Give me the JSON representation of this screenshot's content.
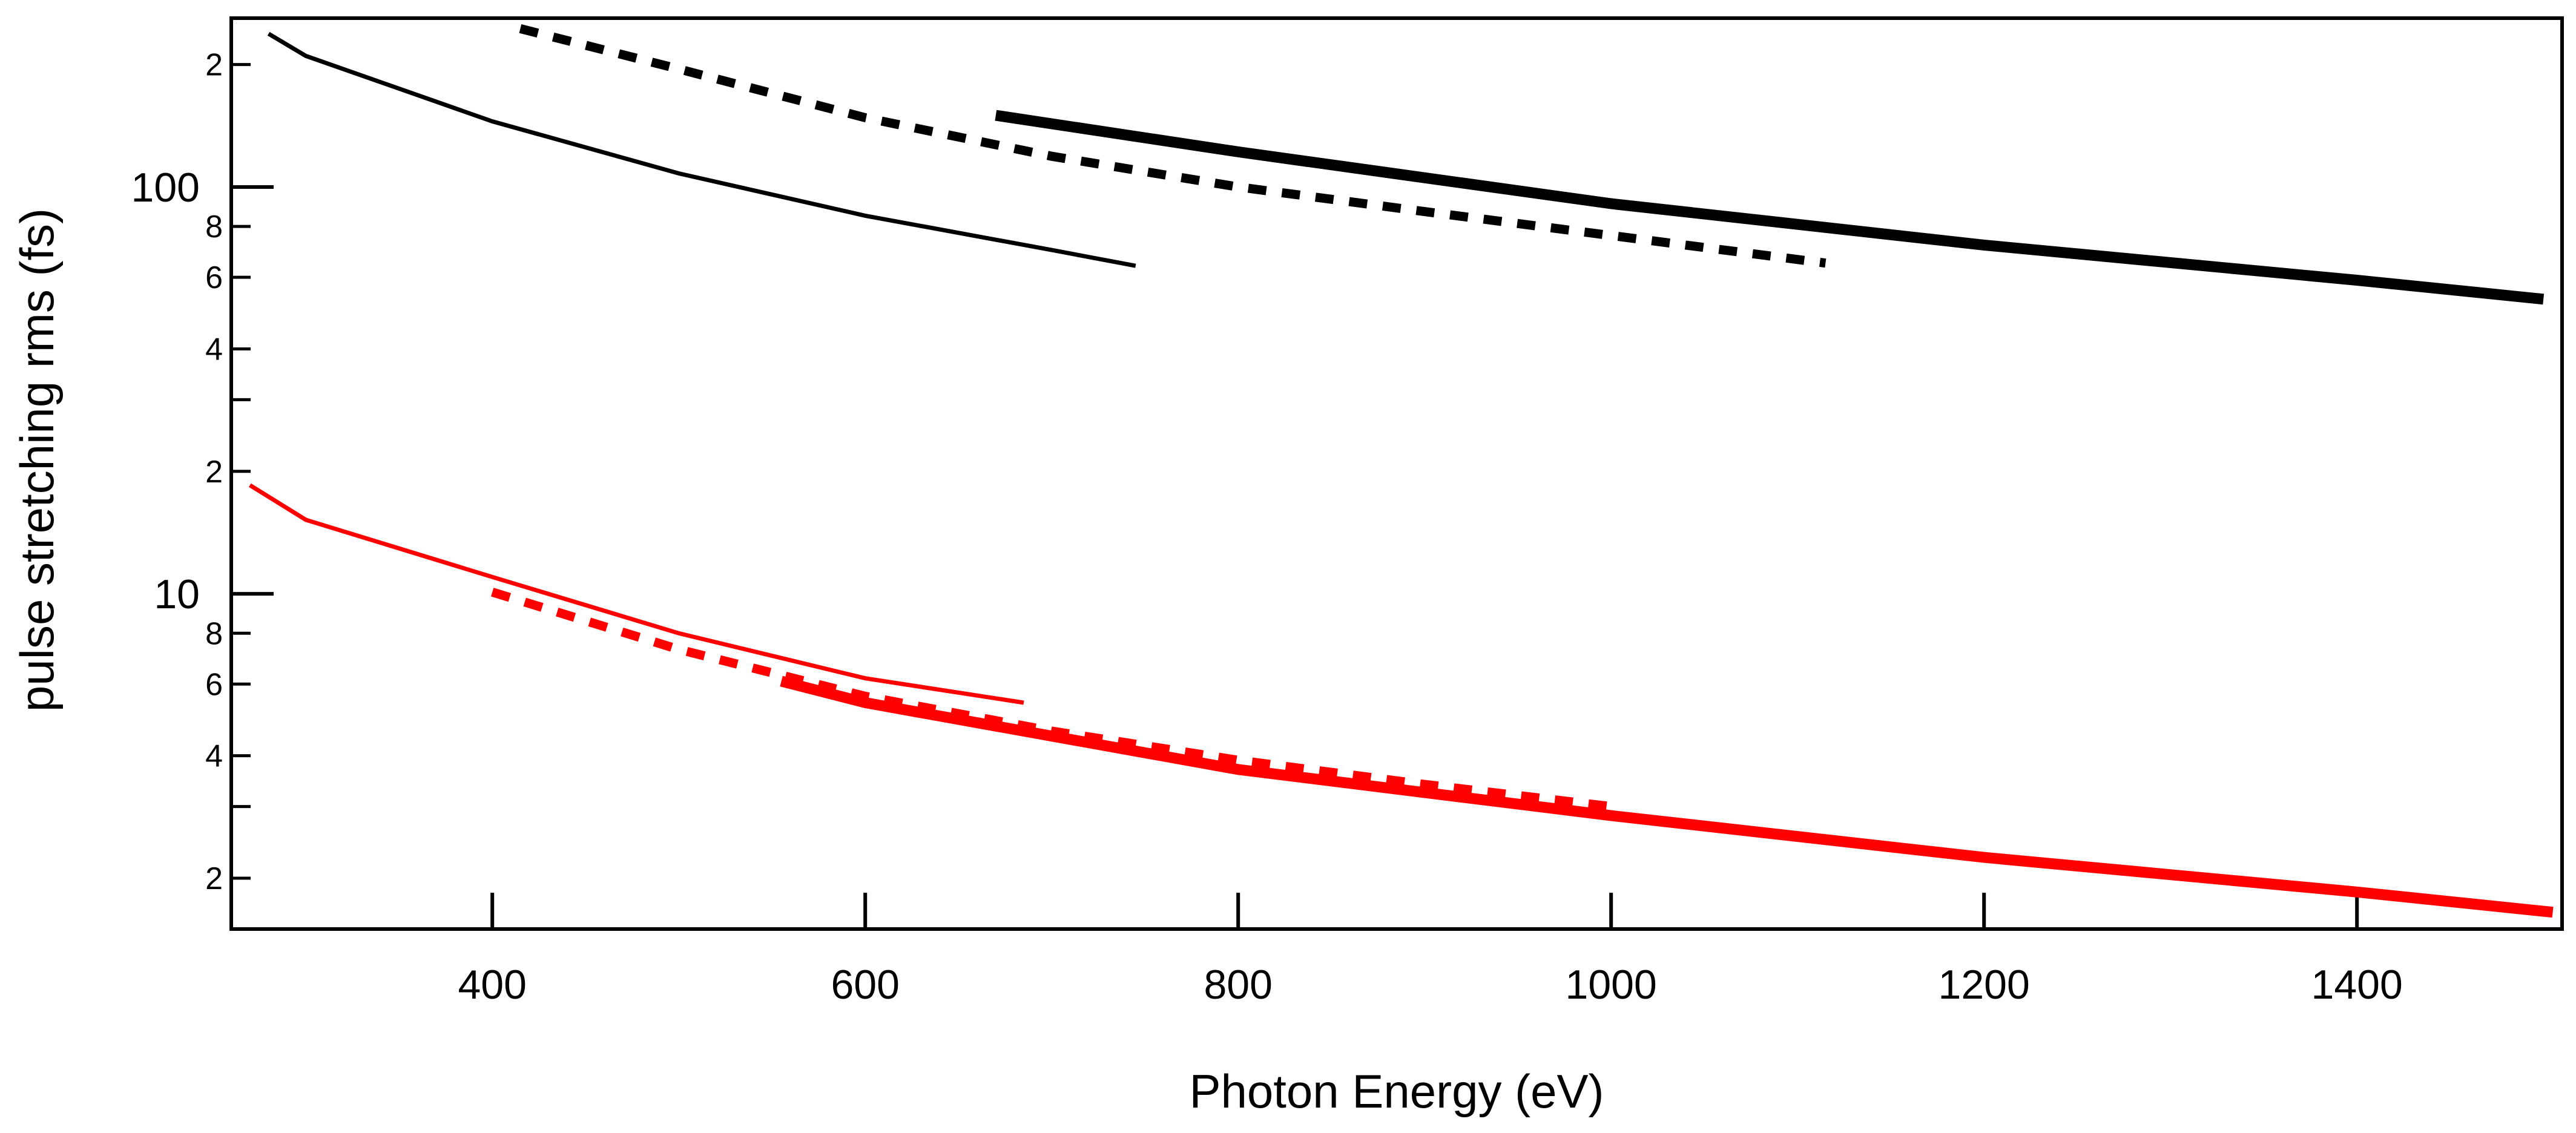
{
  "chart_data": {
    "type": "line",
    "title": "",
    "xlabel": "Photon Energy (eV)",
    "ylabel": "pulse stretching rms (fs)",
    "xlim": [
      260,
      1510
    ],
    "ylim": [
      1.5,
      260
    ],
    "yscale": "log",
    "grid": false,
    "legend": "none",
    "x_ticks": [
      {
        "value": 400,
        "label": "400"
      },
      {
        "value": 600,
        "label": "600"
      },
      {
        "value": 800,
        "label": "800"
      },
      {
        "value": 1000,
        "label": "1000"
      },
      {
        "value": 1200,
        "label": "1200"
      },
      {
        "value": 1400,
        "label": "1400"
      }
    ],
    "y_major_ticks": [
      {
        "value": 10,
        "label": "10"
      },
      {
        "value": 100,
        "label": "100"
      }
    ],
    "y_minor_ticks": [
      {
        "value": 2,
        "label": "2"
      },
      {
        "value": 3,
        "label": ""
      },
      {
        "value": 4,
        "label": "4"
      },
      {
        "value": 6,
        "label": "6"
      },
      {
        "value": 8,
        "label": "8"
      },
      {
        "value": 20,
        "label": "2"
      },
      {
        "value": 30,
        "label": ""
      },
      {
        "value": 40,
        "label": "4"
      },
      {
        "value": 60,
        "label": "6"
      },
      {
        "value": 80,
        "label": "8"
      },
      {
        "value": 200,
        "label": "2"
      }
    ],
    "series": [
      {
        "name": "black-thin",
        "color": "#000000",
        "style": "solid",
        "weight": "thin",
        "x": [
          280,
          300,
          400,
          500,
          600,
          700,
          745
        ],
        "y": [
          238,
          210,
          145,
          108,
          85,
          70,
          64
        ]
      },
      {
        "name": "black-dashed",
        "color": "#000000",
        "style": "dashed",
        "weight": "medium",
        "x": [
          415,
          500,
          600,
          700,
          800,
          900,
          1000,
          1115
        ],
        "y": [
          245,
          195,
          148,
          119,
          100,
          87,
          76,
          65
        ]
      },
      {
        "name": "black-thick",
        "color": "#000000",
        "style": "solid",
        "weight": "thick",
        "x": [
          670,
          800,
          1000,
          1200,
          1400,
          1500
        ],
        "y": [
          150,
          122,
          91,
          72,
          59,
          53
        ]
      },
      {
        "name": "red-thin",
        "color": "#ff0000",
        "style": "solid",
        "weight": "thin",
        "x": [
          270,
          300,
          400,
          500,
          600,
          685
        ],
        "y": [
          18.5,
          15.2,
          11.0,
          8.0,
          6.2,
          5.4
        ]
      },
      {
        "name": "red-dashed",
        "color": "#ff0000",
        "style": "dashed",
        "weight": "medium",
        "x": [
          400,
          500,
          600,
          700,
          800,
          900,
          1000
        ],
        "y": [
          10.1,
          7.3,
          5.6,
          4.6,
          3.9,
          3.4,
          3.0
        ]
      },
      {
        "name": "red-thick",
        "color": "#ff0000",
        "style": "solid",
        "weight": "thick",
        "x": [
          555,
          600,
          800,
          1000,
          1200,
          1400,
          1505
        ],
        "y": [
          6.1,
          5.4,
          3.7,
          2.85,
          2.25,
          1.85,
          1.65
        ]
      }
    ]
  }
}
